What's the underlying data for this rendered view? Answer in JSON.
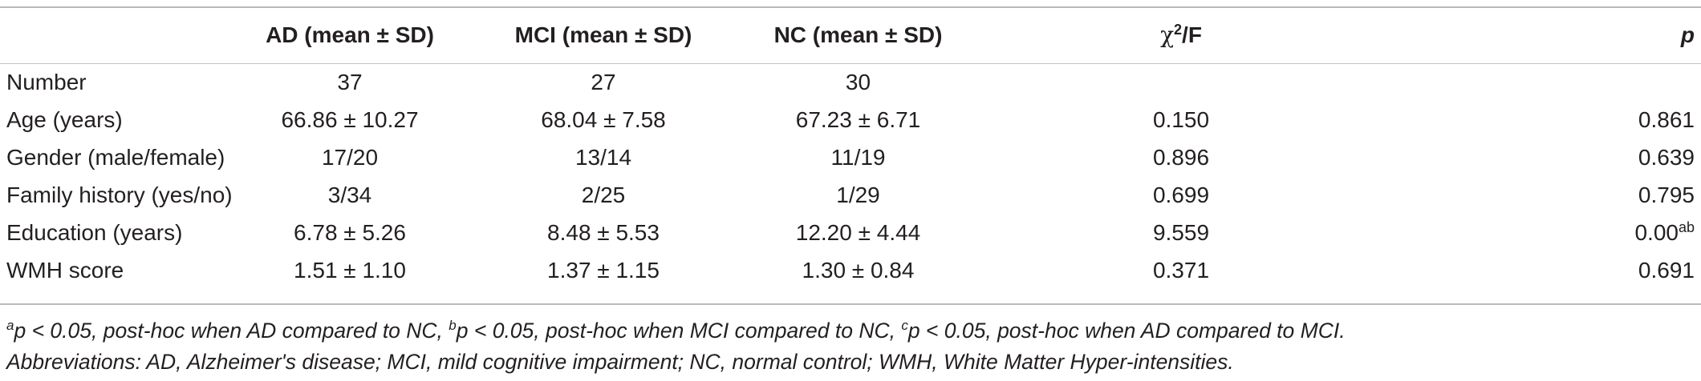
{
  "table": {
    "headers": {
      "variable": "",
      "ad": "AD (mean ± SD)",
      "mci": "MCI (mean ± SD)",
      "nc": "NC (mean ± SD)",
      "stat_chi": "χ",
      "stat_sup": "2",
      "stat_rest": "/F",
      "p": "p"
    },
    "rows": [
      {
        "label": "Number",
        "ad": "37",
        "mci": "27",
        "nc": "30",
        "stat": "",
        "p": "",
        "p_sup": ""
      },
      {
        "label": "Age (years)",
        "ad": "66.86 ± 10.27",
        "mci": "68.04 ± 7.58",
        "nc": "67.23 ± 6.71",
        "stat": "0.150",
        "p": "0.861",
        "p_sup": ""
      },
      {
        "label": "Gender (male/female)",
        "ad": "17/20",
        "mci": "13/14",
        "nc": "11/19",
        "stat": "0.896",
        "p": "0.639",
        "p_sup": ""
      },
      {
        "label": "Family history (yes/no)",
        "ad": "3/34",
        "mci": "2/25",
        "nc": "1/29",
        "stat": "0.699",
        "p": "0.795",
        "p_sup": ""
      },
      {
        "label": "Education (years)",
        "ad": "6.78 ± 5.26",
        "mci": "8.48 ± 5.53",
        "nc": "12.20 ± 4.44",
        "stat": "9.559",
        "p": "0.00",
        "p_sup": "ab"
      },
      {
        "label": "WMH score",
        "ad": "1.51 ± 1.10",
        "mci": "1.37 ± 1.15",
        "nc": "1.30 ± 0.84",
        "stat": "0.371",
        "p": "0.691",
        "p_sup": ""
      }
    ]
  },
  "footnotes": {
    "line1": [
      {
        "sup": "a",
        "text": "p < 0.05, post-hoc when AD compared to NC, "
      },
      {
        "sup": "b",
        "text": "p < 0.05, post-hoc when MCI compared to NC, "
      },
      {
        "sup": "c",
        "text": "p < 0.05, post-hoc when AD compared to MCI."
      }
    ],
    "line2": "Abbreviations: AD, Alzheimer's disease; MCI, mild cognitive impairment; NC, normal control; WMH, White Matter Hyper-intensities."
  }
}
